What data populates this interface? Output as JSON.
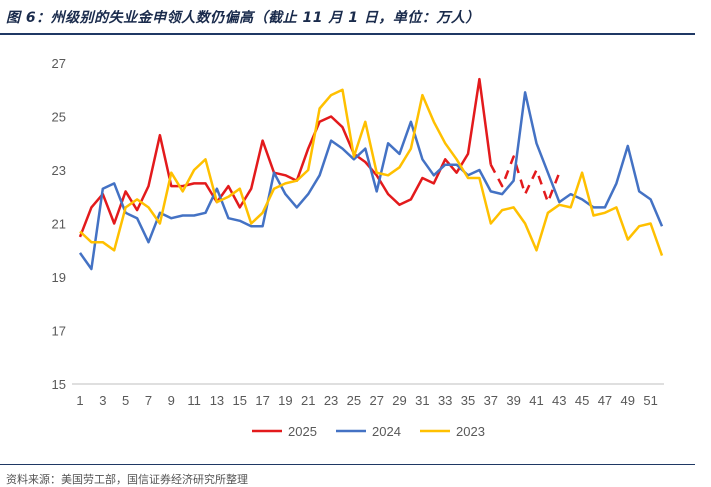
{
  "title": "图 6：州级别的失业金申领人数仍偏高（截止 11 月 1 日，单位：万人）",
  "source": "资料来源：美国劳工部，国信证券经济研究所整理",
  "colors": {
    "2025": "#e31a1c",
    "2024": "#4472c4",
    "2023": "#ffc000",
    "axis": "#bfbfbf",
    "rule": "#1f3864"
  },
  "chart_data": {
    "type": "line",
    "x_tick_labels": [
      "1",
      "3",
      "5",
      "7",
      "9",
      "11",
      "13",
      "15",
      "17",
      "19",
      "21",
      "23",
      "25",
      "27",
      "29",
      "31",
      "33",
      "35",
      "37",
      "39",
      "41",
      "43",
      "45",
      "47",
      "49",
      "51"
    ],
    "y_tick_labels": [
      "15",
      "17",
      "19",
      "21",
      "23",
      "25",
      "27"
    ],
    "xlim": [
      1,
      52
    ],
    "ylim": [
      15,
      27
    ],
    "legend_position": "bottom",
    "series": [
      {
        "name": "2025",
        "color": "#e31a1c",
        "values": [
          20.5,
          21.6,
          22.1,
          21.0,
          22.2,
          21.5,
          22.4,
          24.3,
          22.4,
          22.4,
          22.5,
          22.5,
          21.8,
          22.4,
          21.6,
          22.3,
          24.1,
          22.9,
          22.8,
          22.6,
          23.8,
          24.8,
          25.0,
          24.6,
          23.6,
          23.3,
          22.8,
          22.1,
          21.7,
          21.9,
          22.7,
          22.5,
          23.4,
          22.9,
          23.6,
          26.4,
          23.2,
          22.4,
          23.5,
          22.1,
          23.0,
          21.8,
          22.9
        ],
        "dashed_from_index": 36
      },
      {
        "name": "2024",
        "color": "#4472c4",
        "values": [
          19.9,
          19.3,
          22.3,
          22.5,
          21.4,
          21.2,
          20.3,
          21.4,
          21.2,
          21.3,
          21.3,
          21.4,
          22.3,
          21.2,
          21.1,
          20.9,
          20.9,
          22.9,
          22.1,
          21.6,
          22.1,
          22.8,
          24.1,
          23.8,
          23.4,
          23.8,
          22.2,
          24.0,
          23.6,
          24.8,
          23.4,
          22.8,
          23.2,
          23.2,
          22.8,
          23.0,
          22.2,
          22.1,
          22.6,
          25.9,
          24.0,
          22.9,
          21.8,
          22.1,
          21.9,
          21.6,
          21.6,
          22.5,
          23.9,
          22.2,
          21.9,
          20.9
        ]
      },
      {
        "name": "2023",
        "color": "#ffc000",
        "values": [
          20.7,
          20.3,
          20.3,
          20.0,
          21.6,
          21.9,
          21.6,
          21.0,
          22.9,
          22.2,
          23.0,
          23.4,
          21.8,
          22.0,
          22.3,
          21.0,
          21.4,
          22.3,
          22.5,
          22.6,
          23.0,
          25.3,
          25.8,
          26.0,
          23.5,
          24.8,
          22.9,
          22.8,
          23.1,
          23.8,
          25.8,
          24.8,
          24.0,
          23.4,
          22.7,
          22.7,
          21.0,
          21.5,
          21.6,
          21.0,
          20.0,
          21.4,
          21.7,
          21.6,
          22.9,
          21.3,
          21.4,
          21.6,
          20.4,
          20.9,
          21.0,
          19.8
        ]
      }
    ]
  }
}
